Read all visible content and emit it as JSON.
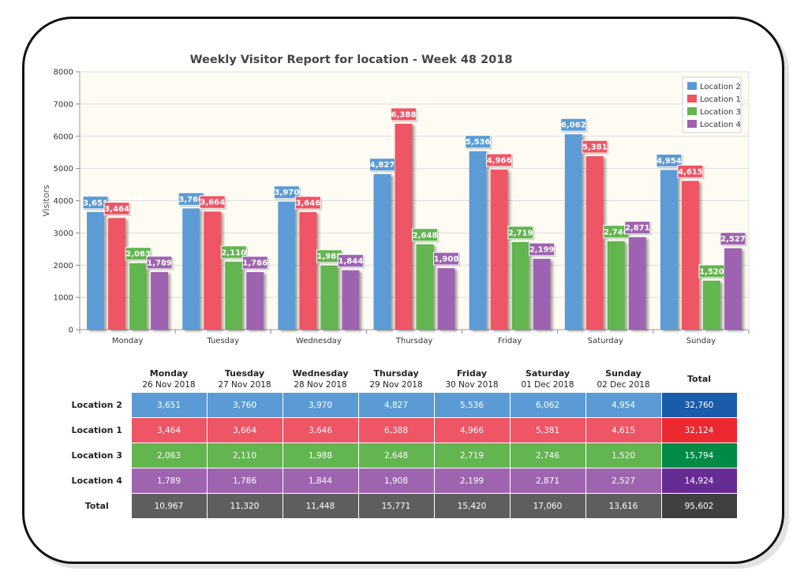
{
  "chart_data": {
    "type": "bar",
    "title": "Weekly Visitor Report for location - Week 48 2018",
    "xlabel": "",
    "ylabel": "Visitors",
    "ylim": [
      0,
      8000
    ],
    "yticks": [
      0,
      1000,
      2000,
      3000,
      4000,
      5000,
      6000,
      7000,
      8000
    ],
    "grid": true,
    "legend_position": "top-right",
    "categories": [
      "Monday",
      "Tuesday",
      "Wednesday",
      "Thursday",
      "Friday",
      "Saturday",
      "Sunday"
    ],
    "series": [
      {
        "name": "Location 2",
        "color": "#5B9BD5",
        "values": [
          3651,
          3760,
          3970,
          4827,
          5536,
          6062,
          4954
        ],
        "labels": [
          "3,651",
          "3,760",
          "3,970",
          "4,827",
          "5,536",
          "6,062",
          "4,954"
        ]
      },
      {
        "name": "Location 1",
        "color": "#EE5565",
        "values": [
          3464,
          3664,
          3646,
          6388,
          4966,
          5381,
          4615
        ],
        "labels": [
          "3,464",
          "3,664",
          "3,646",
          "6,388",
          "4,966",
          "5,381",
          "4,615"
        ]
      },
      {
        "name": "Location 3",
        "color": "#62B54F",
        "values": [
          2063,
          2110,
          1988,
          2648,
          2719,
          2746,
          1520
        ],
        "labels": [
          "2,063",
          "2,110",
          "1,988",
          "2,648",
          "2,719",
          "2,746",
          "1,520"
        ]
      },
      {
        "name": "Location 4",
        "color": "#9E64B0",
        "values": [
          1789,
          1786,
          1844,
          1908,
          2199,
          2871,
          2527
        ],
        "labels": [
          "1,789",
          "1,786",
          "1,844",
          "1,908",
          "2,199",
          "2,871",
          "2,527"
        ]
      }
    ]
  },
  "table": {
    "columns": [
      {
        "day": "Monday",
        "date": "26 Nov 2018"
      },
      {
        "day": "Tuesday",
        "date": "27 Nov 2018"
      },
      {
        "day": "Wednesday",
        "date": "28 Nov 2018"
      },
      {
        "day": "Thursday",
        "date": "29 Nov 2018"
      },
      {
        "day": "Friday",
        "date": "30 Nov 2018"
      },
      {
        "day": "Saturday",
        "date": "01 Dec 2018"
      },
      {
        "day": "Sunday",
        "date": "02 Dec 2018"
      }
    ],
    "total_header": "Total",
    "rows": [
      {
        "label": "Location 2",
        "color": "#5B9BD5",
        "total_color": "#1A5BAA",
        "cells": [
          "3,651",
          "3,760",
          "3,970",
          "4,827",
          "5,536",
          "6,062",
          "4,954"
        ],
        "total": "32,760"
      },
      {
        "label": "Location 1",
        "color": "#EE5565",
        "total_color": "#EC2830",
        "cells": [
          "3,464",
          "3,664",
          "3,646",
          "6,388",
          "4,966",
          "5,381",
          "4,615"
        ],
        "total": "32,124"
      },
      {
        "label": "Location 3",
        "color": "#62B54F",
        "total_color": "#008A45",
        "cells": [
          "2,063",
          "2,110",
          "1,988",
          "2,648",
          "2,719",
          "2,746",
          "1,520"
        ],
        "total": "15,794"
      },
      {
        "label": "Location 4",
        "color": "#9E64B0",
        "total_color": "#662C94",
        "cells": [
          "1,789",
          "1,786",
          "1,844",
          "1,908",
          "2,199",
          "2,871",
          "2,527"
        ],
        "total": "14,924"
      },
      {
        "label": "Total",
        "color": "#5E5E5E",
        "total_color": "#404040",
        "cells": [
          "10,967",
          "11,320",
          "11,448",
          "15,771",
          "15,420",
          "17,060",
          "13,616"
        ],
        "total": "95,602"
      }
    ]
  }
}
